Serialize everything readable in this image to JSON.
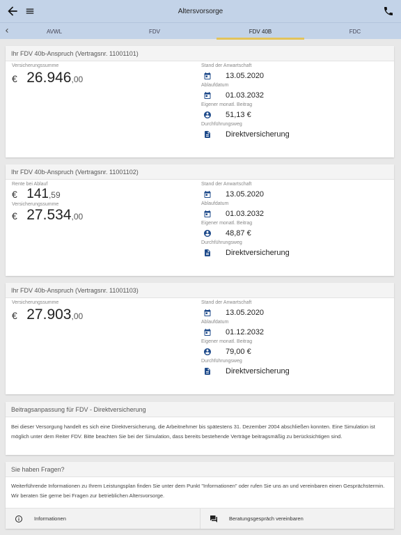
{
  "appbar": {
    "title": "Altersvorsorge",
    "back_icon": "arrow-back-icon",
    "menu_icon": "hamburger-menu-icon",
    "phone_icon": "phone-icon"
  },
  "tabs": {
    "items": [
      {
        "label": "AVWL"
      },
      {
        "label": "FDV"
      },
      {
        "label": "FDV 40B"
      },
      {
        "label": "FDC"
      }
    ],
    "active_index": 2,
    "indicator_color": "#e3c35a"
  },
  "colors": {
    "icon": "#1e4a8a",
    "appbar": "#c3d3e8"
  },
  "contracts": [
    {
      "title": "Ihr FDV 40b-Anspruch (Vertragsnr. 11001101)",
      "amounts": [
        {
          "label": "Versicherungssumme",
          "currency": "€",
          "int": "26.946",
          "dec": ",00"
        }
      ],
      "details": {
        "stand_label": "Stand der Anwartschaft",
        "stand": "13.05.2020",
        "ablauf_label": "Ablaufdatum",
        "ablauf": "01.03.2032",
        "beitrag_label": "Eigener monatl. Beitrag",
        "beitrag": "51,13 €",
        "weg_label": "Durchführungsweg",
        "weg": "Direktversicherung"
      }
    },
    {
      "title": "Ihr FDV 40b-Anspruch (Vertragsnr. 11001102)",
      "amounts": [
        {
          "label": "Rente bei Ablauf",
          "currency": "€",
          "int": "141",
          "dec": ",59"
        },
        {
          "label": "Versicherungssumme",
          "currency": "€",
          "int": "27.534",
          "dec": ",00"
        }
      ],
      "details": {
        "stand_label": "Stand der Anwartschaft",
        "stand": "13.05.2020",
        "ablauf_label": "Ablaufdatum",
        "ablauf": "01.03.2032",
        "beitrag_label": "Eigener monatl. Beitrag",
        "beitrag": "48,87 €",
        "weg_label": "Durchführungsweg",
        "weg": "Direktversicherung"
      }
    },
    {
      "title": "Ihr FDV 40b-Anspruch (Vertragsnr. 11001103)",
      "amounts": [
        {
          "label": "Versicherungssumme",
          "currency": "€",
          "int": "27.903",
          "dec": ",00"
        }
      ],
      "details": {
        "stand_label": "Stand der Anwartschaft",
        "stand": "13.05.2020",
        "ablauf_label": "Ablaufdatum",
        "ablauf": "01.12.2032",
        "beitrag_label": "Eigener monatl. Beitrag",
        "beitrag": "79,00 €",
        "weg_label": "Durchführungsweg",
        "weg": "Direktversicherung"
      }
    }
  ],
  "info": {
    "title": "Beitragsanpassung für FDV - Direktversicherung",
    "text": "Bei dieser Versorgung handelt es sich eine Direktversicherung, die Arbeitnehmer bis spätestens 31. Dezember 2004 abschließen konnten. Eine Simulation ist möglich unter dem Reiter FDV. Bitte beachten Sie bei der Simulation, dass bereits bestehende Verträge beitragsmäßig zu berücksichtigen sind."
  },
  "questions": {
    "title": "Sie haben Fragen?",
    "text": "Weiterführende Informationen zu Ihrem Leistungsplan finden Sie unter dem Punkt \"Informationen\" oder rufen Sie uns an und vereinbaren einen Gesprächstermin. Wir beraten Sie gerne bei Fragen zur betrieblichen Altersvorsorge.",
    "informationen_label": "Informationen",
    "beratung_label": "Beratungsgespräch vereinbaren"
  }
}
